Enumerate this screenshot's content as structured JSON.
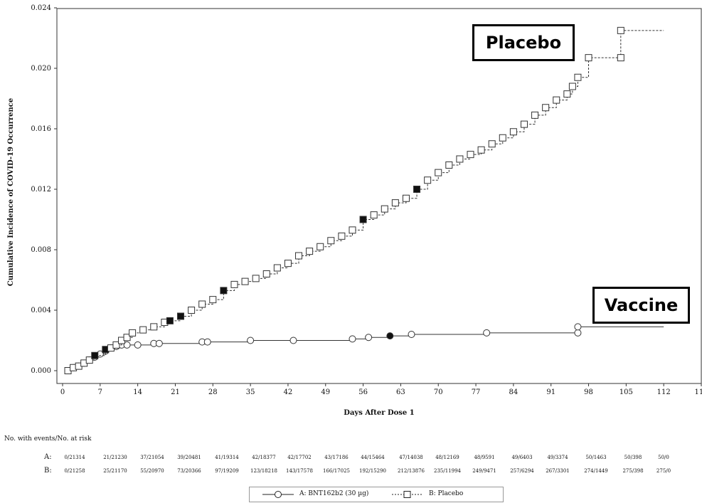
{
  "chart_data": {
    "type": "line",
    "xlabel": "Days After Dose 1",
    "ylabel": "Cumulative Incidence of COVID-19 Occurrence",
    "xlim": [
      0,
      119
    ],
    "ylim": [
      0,
      0.024
    ],
    "xticks": [
      "0",
      "7",
      "14",
      "21",
      "28",
      "35",
      "42",
      "49",
      "56",
      "63",
      "70",
      "77",
      "84",
      "91",
      "98",
      "105",
      "112",
      "119"
    ],
    "yticks": [
      "0.000",
      "0.004",
      "0.008",
      "0.012",
      "0.016",
      "0.020",
      "0.024"
    ],
    "grid": false,
    "legend_position": "bottom",
    "series": [
      {
        "name": "A: BNT162b2 (30 µg)",
        "style": "solid",
        "marker": "circle",
        "points": [
          [
            1,
            0.0
          ],
          [
            2,
            0.0002
          ],
          [
            3,
            0.0003
          ],
          [
            4,
            0.0005
          ],
          [
            5,
            0.0007
          ],
          [
            6,
            0.0009
          ],
          [
            7,
            0.0011
          ],
          [
            8,
            0.0013
          ],
          [
            9,
            0.0015
          ],
          [
            10,
            0.0016
          ],
          [
            11,
            0.0017
          ],
          [
            12,
            0.0017
          ],
          [
            14,
            0.0017
          ],
          [
            17,
            0.0018
          ],
          [
            18,
            0.0018
          ],
          [
            26,
            0.0019
          ],
          [
            27,
            0.0019
          ],
          [
            35,
            0.002
          ],
          [
            43,
            0.002
          ],
          [
            54,
            0.0021
          ],
          [
            57,
            0.0022
          ],
          [
            61,
            0.0023
          ],
          [
            65,
            0.0024
          ],
          [
            79,
            0.0025
          ],
          [
            96,
            0.0025
          ],
          [
            96,
            0.0029
          ],
          [
            112,
            0.0029
          ]
        ],
        "filled_markers": [
          [
            61,
            0.0023
          ]
        ]
      },
      {
        "name": "B: Placebo",
        "style": "dashed",
        "marker": "square",
        "points": [
          [
            1,
            0.0
          ],
          [
            2,
            0.0002
          ],
          [
            3,
            0.0003
          ],
          [
            4,
            0.0005
          ],
          [
            5,
            0.0007
          ],
          [
            6,
            0.001
          ],
          [
            8,
            0.0014
          ],
          [
            9,
            0.0015
          ],
          [
            10,
            0.0017
          ],
          [
            11,
            0.002
          ],
          [
            12,
            0.0022
          ],
          [
            13,
            0.0025
          ],
          [
            15,
            0.0027
          ],
          [
            17,
            0.0029
          ],
          [
            19,
            0.0032
          ],
          [
            20,
            0.0033
          ],
          [
            22,
            0.0036
          ],
          [
            24,
            0.004
          ],
          [
            26,
            0.0044
          ],
          [
            28,
            0.0047
          ],
          [
            30,
            0.0053
          ],
          [
            32,
            0.0057
          ],
          [
            34,
            0.0059
          ],
          [
            36,
            0.0061
          ],
          [
            38,
            0.0064
          ],
          [
            40,
            0.0068
          ],
          [
            42,
            0.0071
          ],
          [
            44,
            0.0076
          ],
          [
            46,
            0.0079
          ],
          [
            48,
            0.0082
          ],
          [
            50,
            0.0086
          ],
          [
            52,
            0.0089
          ],
          [
            54,
            0.0093
          ],
          [
            56,
            0.01
          ],
          [
            58,
            0.0103
          ],
          [
            60,
            0.0107
          ],
          [
            62,
            0.0111
          ],
          [
            64,
            0.0114
          ],
          [
            66,
            0.012
          ],
          [
            68,
            0.0126
          ],
          [
            70,
            0.0131
          ],
          [
            72,
            0.0136
          ],
          [
            74,
            0.014
          ],
          [
            76,
            0.0143
          ],
          [
            78,
            0.0146
          ],
          [
            80,
            0.015
          ],
          [
            82,
            0.0154
          ],
          [
            84,
            0.0158
          ],
          [
            86,
            0.0163
          ],
          [
            88,
            0.0169
          ],
          [
            90,
            0.0174
          ],
          [
            92,
            0.0179
          ],
          [
            94,
            0.0183
          ],
          [
            95,
            0.0188
          ],
          [
            96,
            0.0194
          ],
          [
            98,
            0.0207
          ],
          [
            104,
            0.0207
          ],
          [
            104,
            0.0225
          ],
          [
            112,
            0.0225
          ]
        ],
        "filled_markers": [
          [
            6,
            0.001
          ],
          [
            8,
            0.0014
          ],
          [
            20,
            0.0033
          ],
          [
            22,
            0.0036
          ],
          [
            30,
            0.0053
          ],
          [
            56,
            0.01
          ],
          [
            66,
            0.012
          ]
        ]
      }
    ],
    "annotations": [
      "Placebo",
      "Vaccine"
    ]
  },
  "callouts": {
    "placebo": "Placebo",
    "vaccine": "Vaccine"
  },
  "risk_table": {
    "title": "No. with events/No. at risk",
    "rows": [
      {
        "label": "A:",
        "cells": [
          "0/21314",
          "21/21230",
          "37/21054",
          "39/20481",
          "41/19314",
          "42/18377",
          "42/17702",
          "43/17186",
          "44/15464",
          "47/14038",
          "48/12169",
          "48/9591",
          "49/6403",
          "49/3374",
          "50/1463",
          "50/398",
          "50/0"
        ]
      },
      {
        "label": "B:",
        "cells": [
          "0/21258",
          "25/21170",
          "55/20970",
          "73/20366",
          "97/19209",
          "123/18218",
          "143/17578",
          "166/17025",
          "192/15290",
          "212/13876",
          "235/11994",
          "249/9471",
          "257/6294",
          "267/3301",
          "274/1449",
          "275/398",
          "275/0"
        ]
      }
    ]
  },
  "legend": {
    "a": "A: BNT162b2 (30 µg)",
    "b": "B: Placebo"
  }
}
